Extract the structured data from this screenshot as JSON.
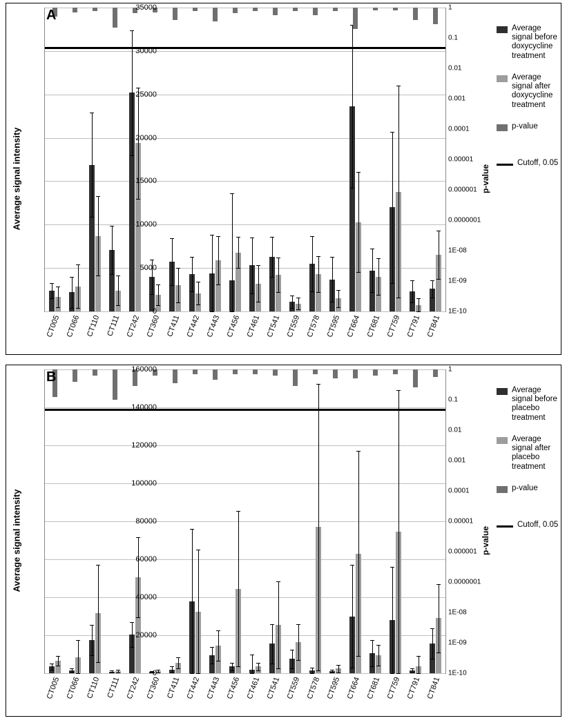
{
  "categories": [
    "CT005",
    "CT066",
    "CT110",
    "CT111",
    "CT242",
    "CT360",
    "CT411",
    "CT442",
    "CT443",
    "CT456",
    "CT461",
    "CT541",
    "CT559",
    "CT578",
    "CT595",
    "CT664",
    "CT681",
    "CT759",
    "CT791",
    "CT841"
  ],
  "colors": {
    "before": "#302f2f",
    "after": "#9d9d9d",
    "pvalue": "#707070",
    "cutoff": "#000000",
    "grid": "#bfbfbf",
    "background": "#ffffff"
  },
  "axis_labels": {
    "left": "Average signal intensity",
    "right": "p-value"
  },
  "legend_cutoff_label": "Cutoff, 0.05",
  "legend_pvalue_label": "p-value",
  "panel_a": {
    "label": "A",
    "ylim_left": [
      0,
      35000
    ],
    "ytick_step_left": 5000,
    "ylim_right_log10": [
      -10,
      0
    ],
    "cutoff_right": 0.05,
    "legend_before": "Average signal before doxycycline treatment",
    "legend_after": "Average signal after doxycycline treatment",
    "before": [
      2400,
      2200,
      16900,
      7100,
      25200,
      4000,
      5700,
      4300,
      4400,
      3600,
      5300,
      6300,
      1100,
      5500,
      3700,
      23600,
      4700,
      12000,
      2300,
      2600
    ],
    "before_err": [
      900,
      1800,
      6000,
      2800,
      7200,
      2000,
      2700,
      2000,
      4400,
      10000,
      3200,
      2300,
      700,
      3200,
      2600,
      9400,
      2500,
      8700,
      1300,
      1000
    ],
    "after": [
      1700,
      2900,
      8700,
      2400,
      19400,
      1900,
      3000,
      2100,
      5900,
      6800,
      3200,
      4200,
      900,
      4300,
      1500,
      10300,
      4000,
      13800,
      700,
      6500
    ],
    "after_err": [
      1200,
      2500,
      4600,
      1700,
      6400,
      1200,
      2000,
      1300,
      2800,
      1800,
      2100,
      2000,
      700,
      2100,
      1000,
      5800,
      2100,
      12200,
      800,
      2800
    ],
    "p_log10": [
      -0.3,
      -0.15,
      -0.12,
      -0.65,
      -0.18,
      -0.15,
      -0.4,
      -0.12,
      -0.45,
      -0.18,
      -0.12,
      -0.25,
      -0.12,
      -0.25,
      -0.12,
      -0.7,
      -0.1,
      -0.1,
      -0.42,
      -0.55
    ]
  },
  "panel_b": {
    "label": "B",
    "ylim_left": [
      0,
      160000
    ],
    "ytick_step_left": 20000,
    "ylim_right_log10": [
      -10,
      0
    ],
    "cutoff_right": 0.05,
    "legend_before": "Average signal before placebo treatment",
    "legend_after": "Average signal after placebo treatment",
    "before": [
      3500,
      1500,
      17500,
      800,
      20500,
      700,
      2000,
      38000,
      9500,
      3500,
      2000,
      15500,
      7500,
      1500,
      1000,
      30000,
      10500,
      28000,
      1500,
      15500
    ],
    "before_err": [
      1500,
      1000,
      8000,
      600,
      6500,
      500,
      1500,
      38000,
      4500,
      2000,
      8000,
      10500,
      5000,
      1500,
      800,
      27000,
      7000,
      28000,
      1000,
      8000
    ],
    "after": [
      6500,
      8500,
      31500,
      1200,
      50500,
      1200,
      5500,
      32500,
      14500,
      44500,
      3500,
      25500,
      16500,
      77000,
      2500,
      63000,
      9500,
      74500,
      3500,
      29000
    ],
    "after_err": [
      2500,
      9000,
      25500,
      800,
      21000,
      800,
      3000,
      32500,
      8000,
      41000,
      2000,
      23000,
      9500,
      75500,
      2000,
      54000,
      5500,
      74500,
      5500,
      18000
    ],
    "p_log10": [
      -0.9,
      -0.4,
      -0.2,
      -1.0,
      -0.55,
      -0.2,
      -0.45,
      -0.15,
      -0.35,
      -0.15,
      -0.15,
      -0.2,
      -0.55,
      -0.15,
      -0.3,
      -0.3,
      -0.2,
      -0.15,
      -0.6,
      -0.25
    ]
  },
  "typography": {
    "tick_fontsize": 11,
    "axis_label_fontsize": 13,
    "panel_label_fontsize": 20,
    "legend_fontsize": 11.5
  }
}
